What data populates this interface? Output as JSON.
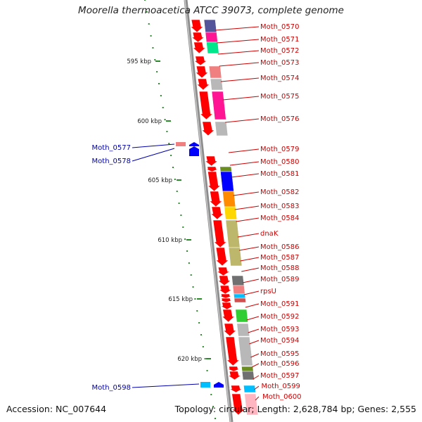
{
  "title": "Moorella thermoacetica ATCC 39073, complete genome",
  "footer": {
    "accession": "Accession: NC_007644",
    "summary": "Topology: circular; Length: 2,628,784 bp; Genes: 2,555"
  },
  "colors": {
    "forward_label": "#cc0000",
    "reverse_label": "#0000aa",
    "arrow_forward": "#ff0000",
    "arrow_reverse": "#0000ff",
    "tick": "#2a8a2a",
    "backbone": "#909090"
  },
  "kbp_ticks": [
    {
      "label": "595 kbp"
    },
    {
      "label": "600 kbp"
    },
    {
      "label": "605 kbp"
    },
    {
      "label": "610 kbp"
    },
    {
      "label": "615 kbp"
    },
    {
      "label": "620 kbp"
    }
  ],
  "forward_genes": [
    {
      "name": "Moth_0570",
      "strip": "#54549a"
    },
    {
      "name": "Moth_0571",
      "strip": "#ff1493"
    },
    {
      "name": "Moth_0572",
      "strip": "#00e68a"
    },
    {
      "name": "Moth_0573",
      "strip": "#ffffff"
    },
    {
      "name": "Moth_0574",
      "strip": "#f08080"
    },
    {
      "name": "Moth_0575",
      "strip": "#b8b8b8"
    },
    {
      "name": "Moth_0576",
      "strip": "#ff1493"
    },
    {
      "name": "Moth_0579",
      "strip": "#b8b8b8"
    },
    {
      "name": "Moth_0580",
      "strip": "#ffffff"
    },
    {
      "name": "Moth_0581",
      "strip": "#6b8e23"
    },
    {
      "name": "Moth_0582",
      "strip": "#0000ff"
    },
    {
      "name": "Moth_0583",
      "strip": "#ff8c00"
    },
    {
      "name": "Moth_0584",
      "strip": "#ffd700"
    },
    {
      "name": "dnaK",
      "strip": "#bdb76b"
    },
    {
      "name": "Moth_0586",
      "strip": "#bdb76b"
    },
    {
      "name": "Moth_0587",
      "strip": "#ffffff"
    },
    {
      "name": "Moth_0588",
      "strip": "#707070"
    },
    {
      "name": "Moth_0589",
      "strip": "#f08080"
    },
    {
      "name": "rpsU",
      "strip": "#00bfff"
    },
    {
      "name": "Moth_0591",
      "strip": "#d05050"
    },
    {
      "name": "Moth_0592",
      "strip": "#ffffff"
    },
    {
      "name": "Moth_0593",
      "strip": "#32cd32"
    },
    {
      "name": "Moth_0594",
      "strip": "#b8b8b8"
    },
    {
      "name": "Moth_0595",
      "strip": "#b8b8b8"
    },
    {
      "name": "Moth_0596",
      "strip": "#6b8e23"
    },
    {
      "name": "Moth_0597",
      "strip": "#707070"
    },
    {
      "name": "Moth_0599",
      "strip": "#00bfff"
    },
    {
      "name": "Moth_0600",
      "strip": "#ffb6c1"
    }
  ],
  "reverse_genes": [
    {
      "name": "Moth_0577",
      "strip": "#f08080"
    },
    {
      "name": "Moth_0578",
      "strip": "#ffffff"
    },
    {
      "name": "Moth_0598",
      "strip": "#00bfff"
    }
  ]
}
